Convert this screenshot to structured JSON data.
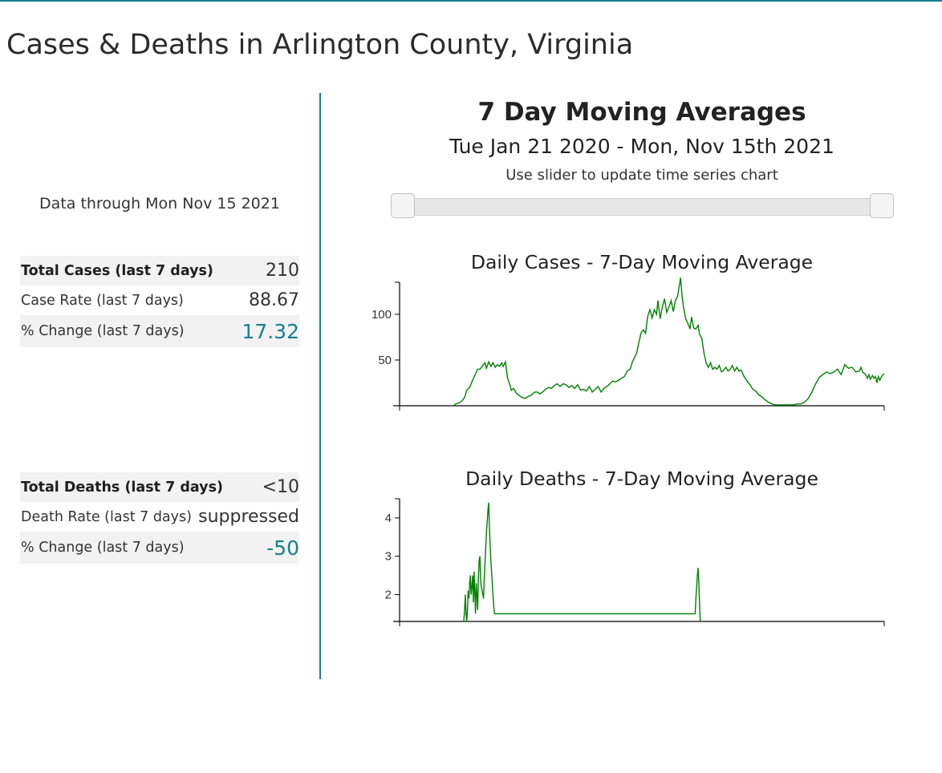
{
  "page": {
    "title": "Cases & Deaths in Arlington County, Virginia"
  },
  "summary": {
    "data_through": "Data through Mon Nov 15 2021",
    "cases": [
      {
        "label": "Total Cases (last 7 days)",
        "value": "210"
      },
      {
        "label": "Case Rate (last 7 days)",
        "value": "88.67"
      },
      {
        "label": "% Change (last 7 days)",
        "value": "17.32"
      }
    ],
    "deaths": [
      {
        "label": "Total Deaths (last 7 days)",
        "value": "<10"
      },
      {
        "label": "Death Rate (last 7 days)",
        "value": "suppressed"
      },
      {
        "label": "% Change (last 7 days)",
        "value": "-50"
      }
    ]
  },
  "panel": {
    "title": "7 Day Moving Averages",
    "date_range": "Tue Jan 21 2020 - Mon, Nov 15th 2021",
    "slider_hint": "Use slider to update time series chart",
    "slider": {
      "start_fraction": 0,
      "end_fraction": 1
    }
  },
  "colors": {
    "accent": "#17808b",
    "series": "#008000"
  },
  "chart_data": [
    {
      "type": "line",
      "title": "Daily Cases - 7-Day Moving Average",
      "xlabel": "",
      "ylabel": "",
      "x_start": "2020-01-21",
      "x_end": "2021-11-15",
      "ylim": [
        0,
        135
      ],
      "yticks": [
        50,
        100
      ],
      "x_range": [
        0,
        664
      ],
      "points": [
        [
          74,
          0
        ],
        [
          77,
          2
        ],
        [
          84,
          4
        ],
        [
          89,
          9
        ],
        [
          92,
          17
        ],
        [
          96,
          20
        ],
        [
          100,
          28
        ],
        [
          103,
          33
        ],
        [
          107,
          40
        ],
        [
          110,
          40
        ],
        [
          114,
          44
        ],
        [
          117,
          47
        ],
        [
          119,
          41
        ],
        [
          122,
          48
        ],
        [
          125,
          43
        ],
        [
          128,
          47
        ],
        [
          131,
          42
        ],
        [
          134,
          45
        ],
        [
          137,
          43
        ],
        [
          140,
          47
        ],
        [
          142,
          43
        ],
        [
          145,
          48
        ],
        [
          148,
          30
        ],
        [
          151,
          23
        ],
        [
          153,
          17
        ],
        [
          156,
          19
        ],
        [
          160,
          14
        ],
        [
          164,
          11
        ],
        [
          168,
          9
        ],
        [
          172,
          8
        ],
        [
          176,
          10
        ],
        [
          181,
          12
        ],
        [
          185,
          15
        ],
        [
          189,
          15
        ],
        [
          192,
          13
        ],
        [
          196,
          15
        ],
        [
          200,
          18
        ],
        [
          204,
          20
        ],
        [
          208,
          19
        ],
        [
          212,
          22
        ],
        [
          216,
          24
        ],
        [
          220,
          21
        ],
        [
          224,
          24
        ],
        [
          228,
          23
        ],
        [
          232,
          20
        ],
        [
          236,
          22
        ],
        [
          240,
          19
        ],
        [
          244,
          23
        ],
        [
          248,
          17
        ],
        [
          252,
          18
        ],
        [
          256,
          16
        ],
        [
          260,
          21
        ],
        [
          264,
          15
        ],
        [
          268,
          18
        ],
        [
          272,
          21
        ],
        [
          276,
          15
        ],
        [
          280,
          19
        ],
        [
          284,
          21
        ],
        [
          288,
          24
        ],
        [
          292,
          27
        ],
        [
          296,
          26
        ],
        [
          300,
          28
        ],
        [
          304,
          30
        ],
        [
          308,
          32
        ],
        [
          312,
          38
        ],
        [
          316,
          40
        ],
        [
          319,
          48
        ],
        [
          322,
          53
        ],
        [
          325,
          58
        ],
        [
          328,
          70
        ],
        [
          331,
          80
        ],
        [
          334,
          83
        ],
        [
          337,
          79
        ],
        [
          340,
          98
        ],
        [
          343,
          105
        ],
        [
          346,
          96
        ],
        [
          349,
          105
        ],
        [
          352,
          100
        ],
        [
          354,
          115
        ],
        [
          357,
          95
        ],
        [
          360,
          108
        ],
        [
          363,
          117
        ],
        [
          366,
          102
        ],
        [
          369,
          108
        ],
        [
          372,
          115
        ],
        [
          375,
          103
        ],
        [
          378,
          115
        ],
        [
          381,
          120
        ],
        [
          383,
          130
        ],
        [
          385,
          140
        ],
        [
          387,
          120
        ],
        [
          389,
          108
        ],
        [
          392,
          95
        ],
        [
          395,
          90
        ],
        [
          398,
          84
        ],
        [
          400,
          97
        ],
        [
          403,
          85
        ],
        [
          406,
          84
        ],
        [
          409,
          88
        ],
        [
          411,
          78
        ],
        [
          414,
          74
        ],
        [
          417,
          58
        ],
        [
          420,
          47
        ],
        [
          423,
          42
        ],
        [
          426,
          47
        ],
        [
          429,
          40
        ],
        [
          432,
          42
        ],
        [
          435,
          40
        ],
        [
          438,
          44
        ],
        [
          441,
          37
        ],
        [
          444,
          39
        ],
        [
          447,
          42
        ],
        [
          450,
          38
        ],
        [
          453,
          40
        ],
        [
          456,
          44
        ],
        [
          459,
          38
        ],
        [
          462,
          42
        ],
        [
          465,
          38
        ],
        [
          468,
          39
        ],
        [
          472,
          32
        ],
        [
          476,
          27
        ],
        [
          480,
          23
        ],
        [
          484,
          18
        ],
        [
          488,
          16
        ],
        [
          492,
          12
        ],
        [
          496,
          10
        ],
        [
          500,
          7
        ],
        [
          505,
          4
        ],
        [
          510,
          2
        ],
        [
          515,
          1
        ],
        [
          520,
          1
        ],
        [
          530,
          1
        ],
        [
          540,
          1
        ],
        [
          545,
          2
        ],
        [
          550,
          2
        ],
        [
          555,
          4
        ],
        [
          560,
          8
        ],
        [
          565,
          15
        ],
        [
          570,
          24
        ],
        [
          575,
          31
        ],
        [
          580,
          34
        ],
        [
          585,
          37
        ],
        [
          590,
          35
        ],
        [
          595,
          37
        ],
        [
          600,
          40
        ],
        [
          605,
          34
        ],
        [
          610,
          45
        ],
        [
          615,
          41
        ],
        [
          620,
          42
        ],
        [
          625,
          37
        ],
        [
          630,
          38
        ],
        [
          632,
          42
        ],
        [
          635,
          36
        ],
        [
          638,
          35
        ],
        [
          641,
          30
        ],
        [
          643,
          34
        ],
        [
          645,
          29
        ],
        [
          648,
          33
        ],
        [
          650,
          30
        ],
        [
          652,
          32
        ],
        [
          654,
          25
        ],
        [
          656,
          32
        ],
        [
          658,
          28
        ],
        [
          661,
          33
        ],
        [
          664,
          35
        ]
      ]
    },
    {
      "type": "line",
      "title": "Daily Deaths - 7-Day Moving Average",
      "xlabel": "",
      "ylabel": "",
      "x_start": "2020-01-21",
      "x_end": "2021-11-15",
      "ylim": [
        1.3,
        4.5
      ],
      "yticks": [
        2,
        3,
        4
      ],
      "x_range": [
        0,
        664
      ],
      "points": [
        [
          88,
          1.3
        ],
        [
          89,
          1.6
        ],
        [
          90,
          2.0
        ],
        [
          91,
          1.5
        ],
        [
          92,
          1.3
        ],
        [
          93,
          1.6
        ],
        [
          94,
          2.1
        ],
        [
          95,
          1.9
        ],
        [
          96,
          2.3
        ],
        [
          97,
          2.5
        ],
        [
          98,
          2.0
        ],
        [
          99,
          2.2
        ],
        [
          100,
          2.5
        ],
        [
          101,
          1.8
        ],
        [
          102,
          2.6
        ],
        [
          103,
          2.1
        ],
        [
          104,
          1.5
        ],
        [
          105,
          2.3
        ],
        [
          106,
          2.0
        ],
        [
          107,
          1.6
        ],
        [
          108,
          2.4
        ],
        [
          109,
          2.9
        ],
        [
          110,
          3.0
        ],
        [
          111,
          2.4
        ],
        [
          112,
          2.2
        ],
        [
          113,
          2.1
        ],
        [
          114,
          2.0
        ],
        [
          115,
          1.9
        ],
        [
          116,
          2.4
        ],
        [
          117,
          2.8
        ],
        [
          118,
          3.2
        ],
        [
          119,
          3.6
        ],
        [
          120,
          3.9
        ],
        [
          121,
          4.2
        ],
        [
          122,
          4.4
        ],
        [
          123,
          3.8
        ],
        [
          124,
          3.3
        ],
        [
          125,
          2.9
        ],
        [
          126,
          2.6
        ],
        [
          127,
          2.3
        ],
        [
          128,
          2.0
        ],
        [
          129,
          1.7
        ],
        [
          130,
          1.5
        ],
        [
          135,
          1.5
        ],
        [
          200,
          1.5
        ],
        [
          300,
          1.5
        ],
        [
          400,
          1.5
        ],
        [
          405,
          1.5
        ],
        [
          406,
          1.9
        ],
        [
          407,
          2.2
        ],
        [
          408,
          2.5
        ],
        [
          409,
          2.7
        ],
        [
          410,
          2.3
        ],
        [
          411,
          1.7
        ],
        [
          412,
          1.3
        ]
      ]
    }
  ]
}
